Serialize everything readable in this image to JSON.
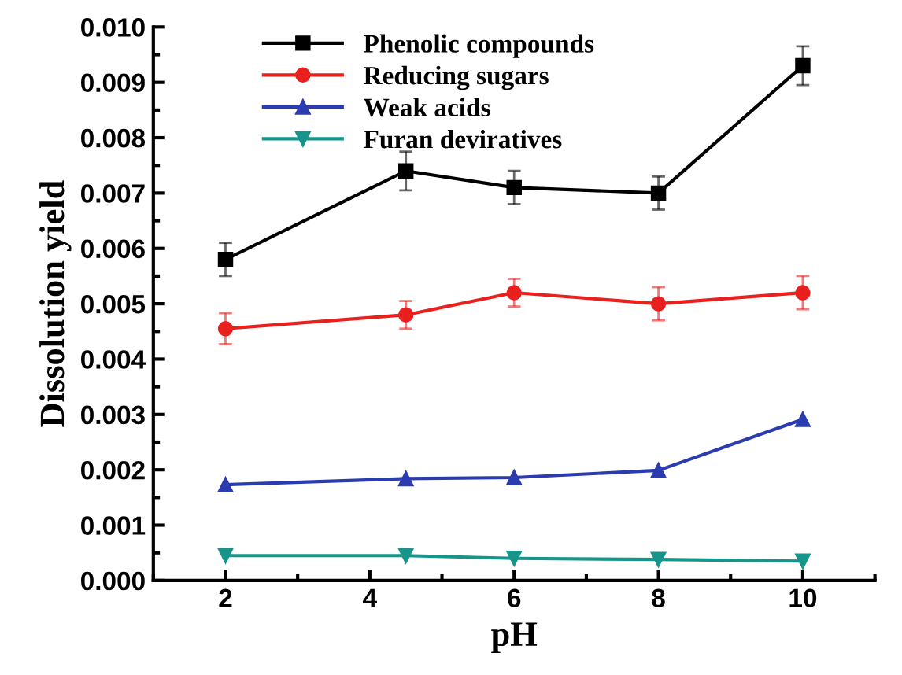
{
  "chart_data": {
    "type": "line",
    "xlabel": "pH",
    "ylabel": "Dissolution yield",
    "x": [
      2,
      4.5,
      6,
      8,
      10
    ],
    "series": [
      {
        "name": "Phenolic compounds",
        "color": "#000000",
        "marker": "square",
        "values": [
          0.0058,
          0.0074,
          0.0071,
          0.007,
          0.0093
        ],
        "errors": [
          0.0003,
          0.00035,
          0.0003,
          0.0003,
          0.00035
        ]
      },
      {
        "name": "Reducing sugars",
        "color": "#e8201e",
        "marker": "circle",
        "values": [
          0.00455,
          0.0048,
          0.0052,
          0.005,
          0.0052
        ],
        "errors": [
          0.00028,
          0.00025,
          0.00025,
          0.0003,
          0.0003
        ]
      },
      {
        "name": "Weak acids",
        "color": "#2b3bb0",
        "marker": "triangle",
        "values": [
          0.00173,
          0.00184,
          0.00186,
          0.00199,
          0.00291
        ]
      },
      {
        "name": "Furan deviratives",
        "color": "#17958a",
        "marker": "triangle_down",
        "values": [
          0.00045,
          0.00045,
          0.0004,
          0.00038,
          0.00035
        ]
      }
    ],
    "xlim": [
      1,
      11
    ],
    "xticks": [
      2,
      4,
      6,
      8,
      10
    ],
    "ylim": [
      0,
      0.01
    ],
    "yticks": [
      {
        "value": 0,
        "label": "0.000"
      },
      {
        "value": 0.001,
        "label": "0.001"
      },
      {
        "value": 0.002,
        "label": "0.002"
      },
      {
        "value": 0.003,
        "label": "0.003"
      },
      {
        "value": 0.004,
        "label": "0.004"
      },
      {
        "value": 0.005,
        "label": "0.005"
      },
      {
        "value": 0.006,
        "label": "0.006"
      },
      {
        "value": 0.007,
        "label": "0.007"
      },
      {
        "value": 0.008,
        "label": "0.008"
      },
      {
        "value": 0.009,
        "label": "0.009"
      },
      {
        "value": 0.01,
        "label": "0.010"
      }
    ],
    "grid": false,
    "legend": "top left",
    "line_style": "solid"
  }
}
